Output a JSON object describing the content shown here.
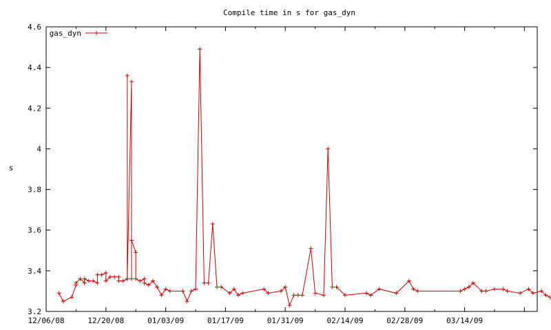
{
  "chart_data": {
    "type": "line",
    "title": "Compile time in s for gas_dyn",
    "xlabel": "",
    "ylabel": "s",
    "xlim": [
      "2008-12-06",
      "2009-03-31"
    ],
    "ylim": [
      3.2,
      4.6
    ],
    "grid": false,
    "legend_position": "top-left",
    "series_color": "#cc0000",
    "x_ticks": [
      {
        "date": "2008-12-06",
        "label": "12/06/08"
      },
      {
        "date": "2008-12-20",
        "label": "12/20/08"
      },
      {
        "date": "2009-01-03",
        "label": "01/03/09"
      },
      {
        "date": "2009-01-17",
        "label": "01/17/09"
      },
      {
        "date": "2009-01-31",
        "label": "01/31/09"
      },
      {
        "date": "2009-02-14",
        "label": "02/14/09"
      },
      {
        "date": "2009-02-28",
        "label": "02/28/09"
      },
      {
        "date": "2009-03-14",
        "label": "03/14/09"
      }
    ],
    "y_ticks": [
      "3.2",
      "3.4",
      "3.6",
      "3.8",
      "4",
      "4.2",
      "4.4",
      "4.6"
    ],
    "series": [
      {
        "name": "gas_dyn",
        "points": [
          {
            "x": "2008-12-09",
            "y": 3.29
          },
          {
            "x": "2008-12-10",
            "y": 3.25
          },
          {
            "x": "2008-12-12",
            "y": 3.27
          },
          {
            "x": "2008-12-13",
            "y": 3.33
          },
          {
            "x": "2008-12-13",
            "y": 3.34
          },
          {
            "x": "2008-12-14",
            "y": 3.36
          },
          {
            "x": "2008-12-15",
            "y": 3.34
          },
          {
            "x": "2008-12-15",
            "y": 3.36
          },
          {
            "x": "2008-12-16",
            "y": 3.35
          },
          {
            "x": "2008-12-17",
            "y": 3.35
          },
          {
            "x": "2008-12-18",
            "y": 3.34
          },
          {
            "x": "2008-12-18",
            "y": 3.38
          },
          {
            "x": "2008-12-19",
            "y": 3.38
          },
          {
            "x": "2008-12-20",
            "y": 3.39
          },
          {
            "x": "2008-12-20",
            "y": 3.35
          },
          {
            "x": "2008-12-21",
            "y": 3.37
          },
          {
            "x": "2008-12-22",
            "y": 3.37
          },
          {
            "x": "2008-12-23",
            "y": 3.37
          },
          {
            "x": "2008-12-23",
            "y": 3.35
          },
          {
            "x": "2008-12-24",
            "y": 3.35
          },
          {
            "x": "2008-12-25",
            "y": 3.36
          },
          {
            "x": "2008-12-25",
            "y": 4.36
          },
          {
            "x": "2008-12-25",
            "y": 3.36
          },
          {
            "x": "2008-12-26",
            "y": 4.33
          },
          {
            "x": "2008-12-26",
            "y": 3.36
          },
          {
            "x": "2008-12-26",
            "y": 3.55
          },
          {
            "x": "2008-12-27",
            "y": 3.49
          },
          {
            "x": "2008-12-27",
            "y": 3.36
          },
          {
            "x": "2008-12-28",
            "y": 3.35
          },
          {
            "x": "2008-12-29",
            "y": 3.36
          },
          {
            "x": "2008-12-29",
            "y": 3.34
          },
          {
            "x": "2008-12-30",
            "y": 3.33
          },
          {
            "x": "2008-12-31",
            "y": 3.35
          },
          {
            "x": "2009-01-01",
            "y": 3.32
          },
          {
            "x": "2009-01-02",
            "y": 3.28
          },
          {
            "x": "2009-01-03",
            "y": 3.31
          },
          {
            "x": "2009-01-04",
            "y": 3.3
          },
          {
            "x": "2009-01-07",
            "y": 3.3
          },
          {
            "x": "2009-01-08",
            "y": 3.25
          },
          {
            "x": "2009-01-09",
            "y": 3.3
          },
          {
            "x": "2009-01-10",
            "y": 3.31
          },
          {
            "x": "2009-01-11",
            "y": 4.49
          },
          {
            "x": "2009-01-12",
            "y": 3.34
          },
          {
            "x": "2009-01-13",
            "y": 3.34
          },
          {
            "x": "2009-01-14",
            "y": 3.63
          },
          {
            "x": "2009-01-15",
            "y": 3.32
          },
          {
            "x": "2009-01-16",
            "y": 3.32
          },
          {
            "x": "2009-01-18",
            "y": 3.29
          },
          {
            "x": "2009-01-19",
            "y": 3.31
          },
          {
            "x": "2009-01-20",
            "y": 3.28
          },
          {
            "x": "2009-01-21",
            "y": 3.29
          },
          {
            "x": "2009-01-26",
            "y": 3.31
          },
          {
            "x": "2009-01-27",
            "y": 3.29
          },
          {
            "x": "2009-01-30",
            "y": 3.3
          },
          {
            "x": "2009-01-31",
            "y": 3.32
          },
          {
            "x": "2009-02-01",
            "y": 3.23
          },
          {
            "x": "2009-02-02",
            "y": 3.28
          },
          {
            "x": "2009-02-03",
            "y": 3.28
          },
          {
            "x": "2009-02-04",
            "y": 3.28
          },
          {
            "x": "2009-02-06",
            "y": 3.51
          },
          {
            "x": "2009-02-07",
            "y": 3.29
          },
          {
            "x": "2009-02-09",
            "y": 3.28
          },
          {
            "x": "2009-02-10",
            "y": 4.0
          },
          {
            "x": "2009-02-11",
            "y": 3.32
          },
          {
            "x": "2009-02-12",
            "y": 3.32
          },
          {
            "x": "2009-02-14",
            "y": 3.28
          },
          {
            "x": "2009-02-19",
            "y": 3.29
          },
          {
            "x": "2009-02-20",
            "y": 3.28
          },
          {
            "x": "2009-02-22",
            "y": 3.31
          },
          {
            "x": "2009-02-26",
            "y": 3.29
          },
          {
            "x": "2009-03-01",
            "y": 3.35
          },
          {
            "x": "2009-03-02",
            "y": 3.31
          },
          {
            "x": "2009-03-03",
            "y": 3.3
          },
          {
            "x": "2009-03-13",
            "y": 3.3
          },
          {
            "x": "2009-03-14",
            "y": 3.31
          },
          {
            "x": "2009-03-15",
            "y": 3.32
          },
          {
            "x": "2009-03-16",
            "y": 3.34
          },
          {
            "x": "2009-03-18",
            "y": 3.3
          },
          {
            "x": "2009-03-19",
            "y": 3.3
          },
          {
            "x": "2009-03-21",
            "y": 3.31
          },
          {
            "x": "2009-03-23",
            "y": 3.31
          },
          {
            "x": "2009-03-24",
            "y": 3.3
          },
          {
            "x": "2009-03-27",
            "y": 3.29
          },
          {
            "x": "2009-03-29",
            "y": 3.31
          },
          {
            "x": "2009-03-30",
            "y": 3.29
          },
          {
            "x": "2009-04-01",
            "y": 3.3
          },
          {
            "x": "2009-04-02",
            "y": 3.28
          },
          {
            "x": "2009-04-03",
            "y": 3.27
          }
        ]
      }
    ]
  }
}
